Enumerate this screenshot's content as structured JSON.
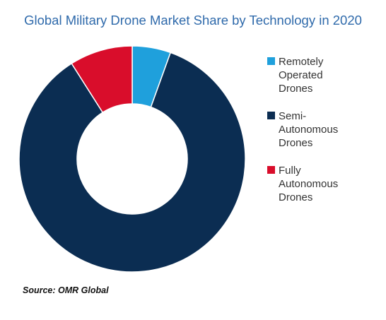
{
  "chart_data": {
    "type": "pie",
    "title": "Global Military Drone Market Share by Technology in 2020",
    "series": [
      {
        "name": "Remotely Operated Drones",
        "value": 5.5,
        "color": "#1fa0dc"
      },
      {
        "name": "Semi-Autonomous Drones",
        "value": 85.5,
        "color": "#0b2d52"
      },
      {
        "name": "Fully Autonomous Drones",
        "value": 9.0,
        "color": "#d90d2b"
      }
    ],
    "legend_labels": [
      [
        "Remotely",
        "Operated",
        "Drones"
      ],
      [
        "Semi-",
        "Autonomous",
        "Drones"
      ],
      [
        "Fully",
        "Autonomous",
        "Drones"
      ]
    ],
    "legend_position": "right",
    "source": "Source: OMR Global"
  }
}
